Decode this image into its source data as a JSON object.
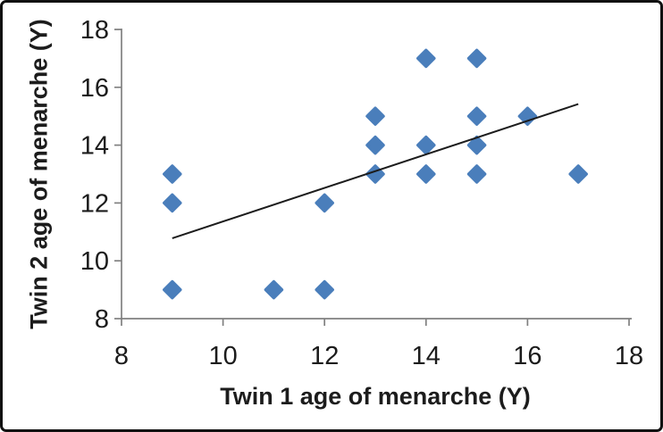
{
  "figure": {
    "background_color": "#ffffff",
    "border_color": "#111111"
  },
  "chart_data": {
    "type": "scatter",
    "title": "",
    "xlabel": "Twin 1 age of menarche (Y)",
    "ylabel": "Twin 2 age of menarche (Y)",
    "xlim": [
      8,
      18
    ],
    "ylim": [
      8,
      18
    ],
    "xticks": [
      8,
      10,
      12,
      14,
      16,
      18
    ],
    "yticks": [
      8,
      10,
      12,
      14,
      16,
      18
    ],
    "grid": false,
    "legend": "none",
    "marker": "diamond",
    "marker_color": "#4a7ebb",
    "axis_color": "#808080",
    "text_color": "#1c1c1c",
    "tick_font_size": 29,
    "points": [
      {
        "x": 9,
        "y": 9
      },
      {
        "x": 9,
        "y": 12
      },
      {
        "x": 9,
        "y": 13
      },
      {
        "x": 11,
        "y": 9
      },
      {
        "x": 12,
        "y": 9
      },
      {
        "x": 12,
        "y": 12
      },
      {
        "x": 13,
        "y": 13
      },
      {
        "x": 13,
        "y": 14
      },
      {
        "x": 13,
        "y": 15
      },
      {
        "x": 14,
        "y": 13
      },
      {
        "x": 14,
        "y": 14
      },
      {
        "x": 14,
        "y": 17
      },
      {
        "x": 15,
        "y": 13
      },
      {
        "x": 15,
        "y": 14
      },
      {
        "x": 15,
        "y": 15
      },
      {
        "x": 15,
        "y": 17
      },
      {
        "x": 16,
        "y": 15
      },
      {
        "x": 17,
        "y": 13
      }
    ],
    "trendline": {
      "x1": 9,
      "y1": 10.78,
      "x2": 17,
      "y2": 15.42,
      "color": "#1c1c1c"
    }
  }
}
